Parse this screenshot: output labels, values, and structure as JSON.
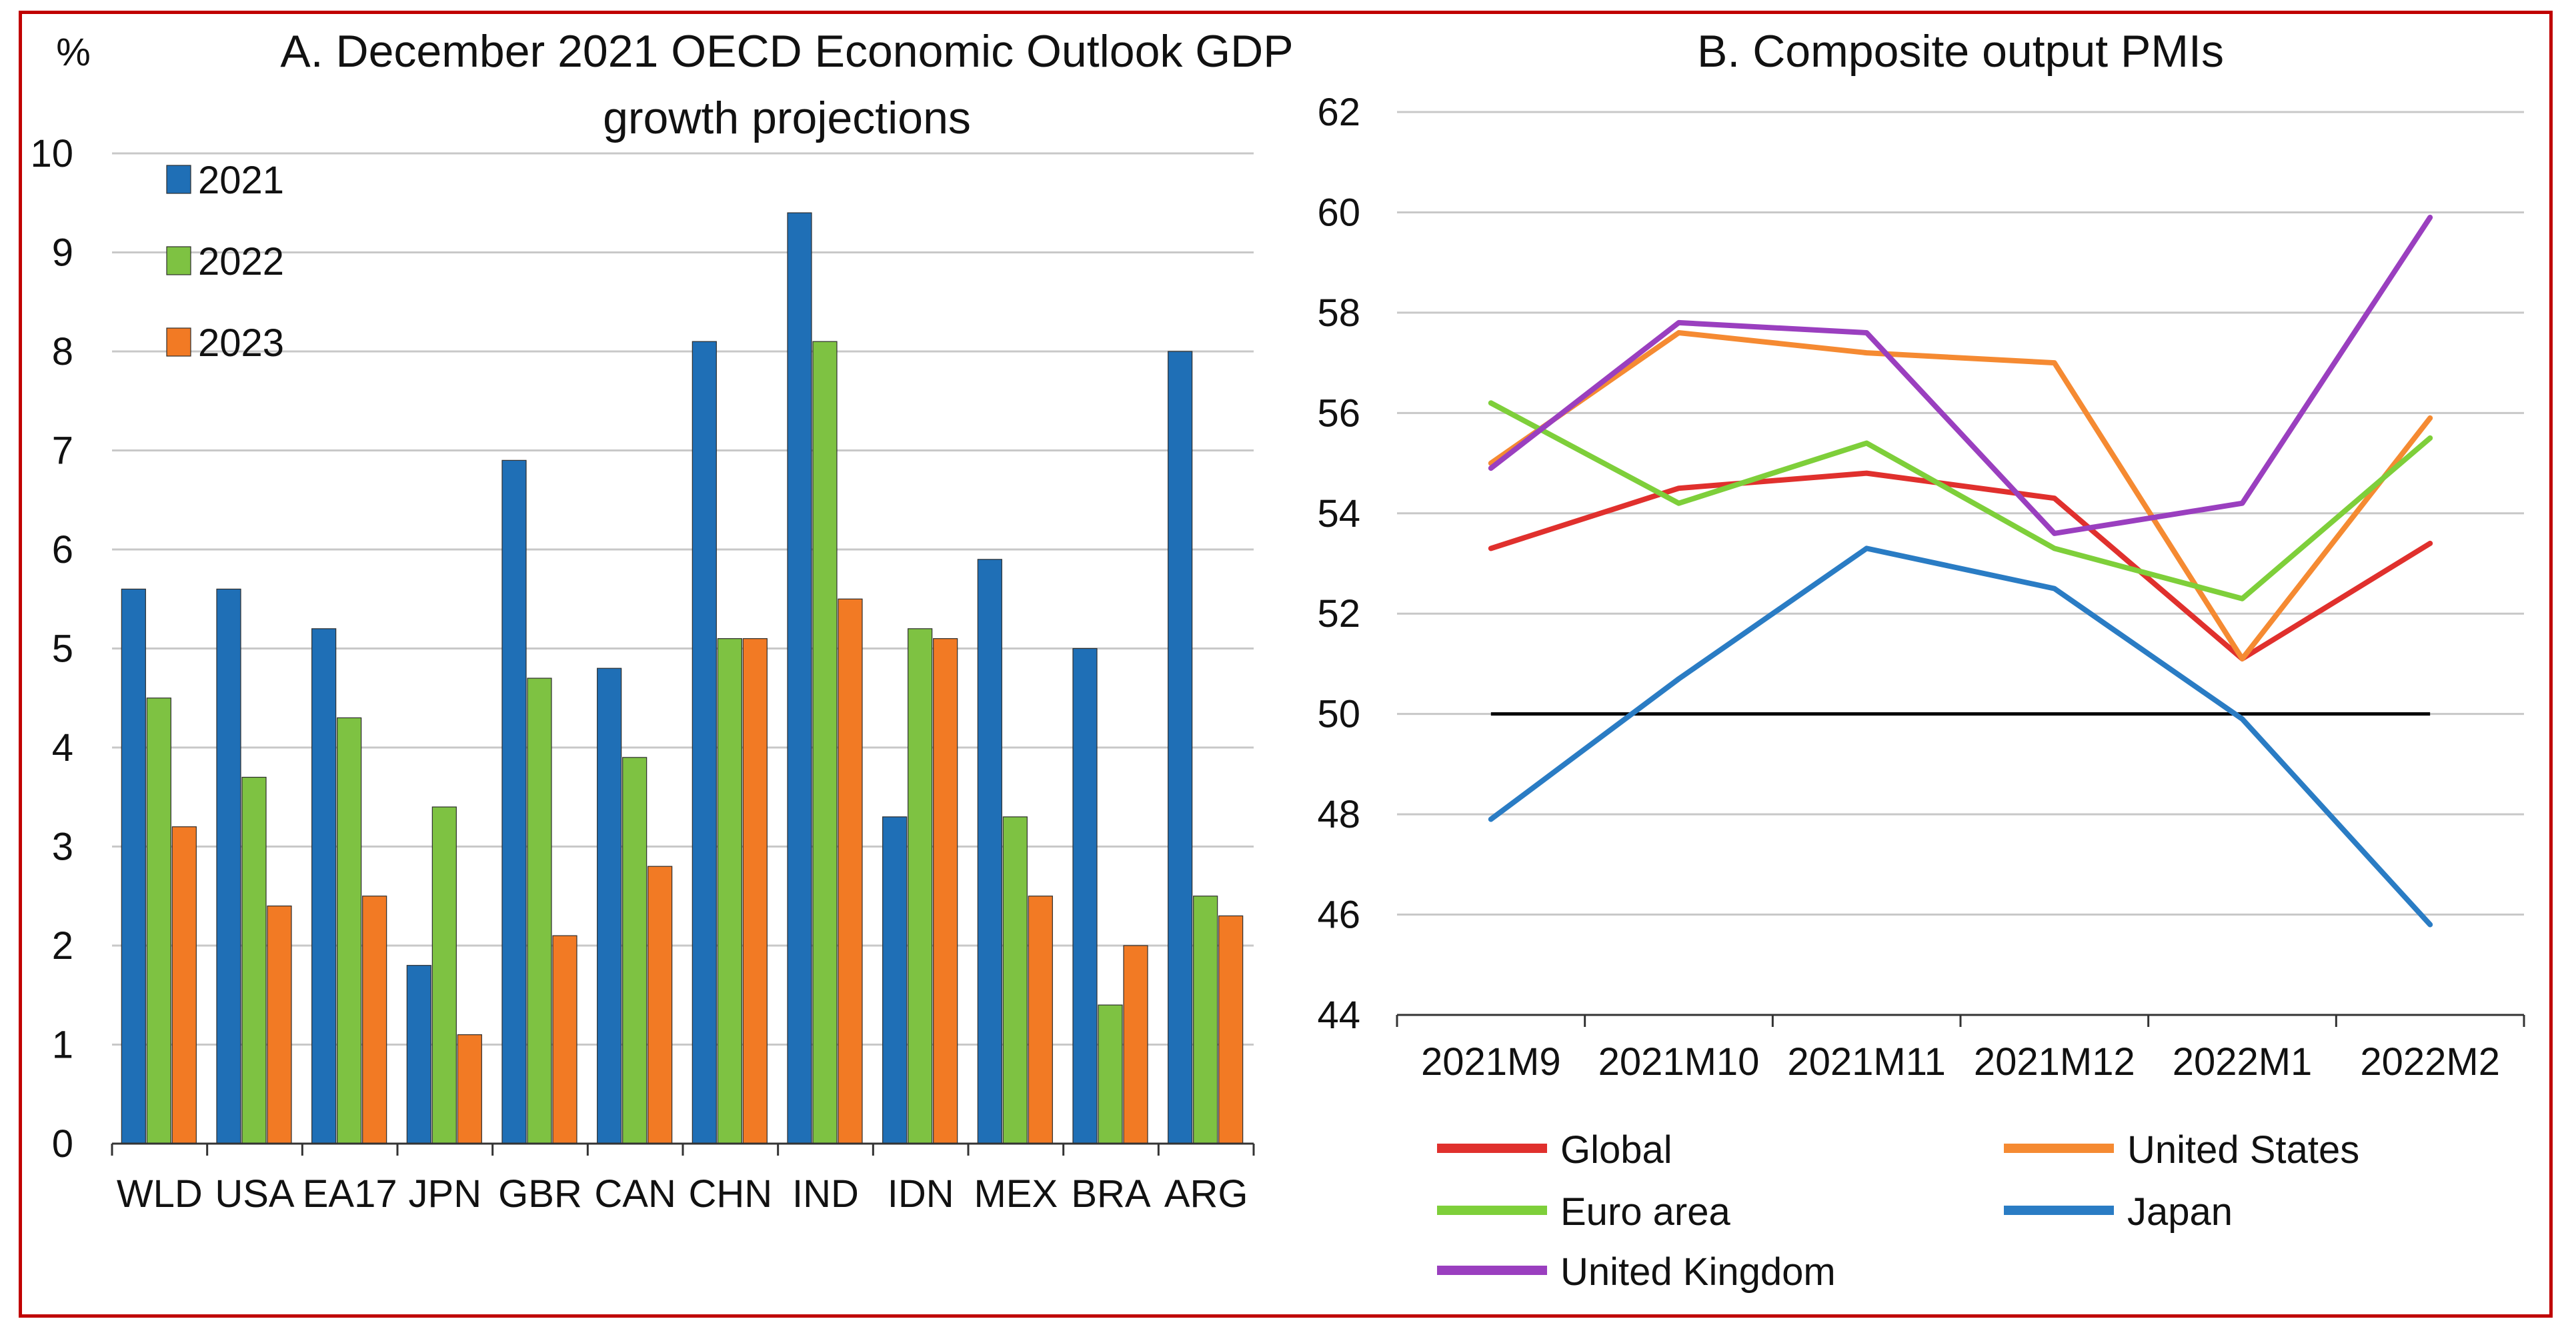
{
  "colors": {
    "frame": "#c00000",
    "s2021": "#1f6fb6",
    "s2022": "#7ec242",
    "s2023": "#f27a24",
    "global": "#e0302d",
    "united_states": "#f58a32",
    "euro_area": "#7ecf3a",
    "japan": "#2a7cc4",
    "united_kingdom": "#9a3fbf",
    "reference": "#000000",
    "grid": "#c8c8c8"
  },
  "chart_data": [
    {
      "type": "bar",
      "title": "A. December 2021 OECD Economic Outlook GDP growth projections",
      "title_lines": [
        "A. December 2021 OECD Economic Outlook GDP",
        "growth projections"
      ],
      "ylabel": "%",
      "ylim": [
        0,
        10
      ],
      "yticks": [
        0,
        1,
        2,
        3,
        4,
        5,
        6,
        7,
        8,
        9,
        10
      ],
      "grid": true,
      "legend_position": "top-left",
      "categories": [
        "WLD",
        "USA",
        "EA17",
        "JPN",
        "GBR",
        "CAN",
        "CHN",
        "IND",
        "IDN",
        "MEX",
        "BRA",
        "ARG"
      ],
      "series": [
        {
          "name": "2021",
          "color": "#1f6fb6",
          "values": [
            5.6,
            5.6,
            5.2,
            1.8,
            6.9,
            4.8,
            8.1,
            9.4,
            3.3,
            5.9,
            5.0,
            8.0
          ]
        },
        {
          "name": "2022",
          "color": "#7ec242",
          "values": [
            4.5,
            3.7,
            4.3,
            3.4,
            4.7,
            3.9,
            5.1,
            8.1,
            5.2,
            3.3,
            1.4,
            2.5
          ]
        },
        {
          "name": "2023",
          "color": "#f27a24",
          "values": [
            3.2,
            2.4,
            2.5,
            1.1,
            2.1,
            2.8,
            5.1,
            5.5,
            5.1,
            2.5,
            2.0,
            2.3
          ]
        }
      ]
    },
    {
      "type": "line",
      "title": "B. Composite output PMIs",
      "ylim": [
        44,
        62
      ],
      "yticks": [
        44,
        46,
        48,
        50,
        52,
        54,
        56,
        58,
        60,
        62
      ],
      "grid": true,
      "legend_position": "bottom",
      "reference_line": 50,
      "x": [
        "2021M9",
        "2021M10",
        "2021M11",
        "2021M12",
        "2022M1",
        "2022M2"
      ],
      "series": [
        {
          "name": "Global",
          "color": "#e0302d",
          "values": [
            53.3,
            54.5,
            54.8,
            54.3,
            51.1,
            53.4
          ]
        },
        {
          "name": "United States",
          "color": "#f58a32",
          "values": [
            55.0,
            57.6,
            57.2,
            57.0,
            51.1,
            55.9
          ]
        },
        {
          "name": "Euro area",
          "color": "#7ecf3a",
          "values": [
            56.2,
            54.2,
            55.4,
            53.3,
            52.3,
            55.5
          ]
        },
        {
          "name": "Japan",
          "color": "#2a7cc4",
          "values": [
            47.9,
            50.7,
            53.3,
            52.5,
            49.9,
            45.8
          ]
        },
        {
          "name": "United Kingdom",
          "color": "#9a3fbf",
          "values": [
            54.9,
            57.8,
            57.6,
            53.6,
            54.2,
            59.9
          ]
        }
      ]
    }
  ]
}
